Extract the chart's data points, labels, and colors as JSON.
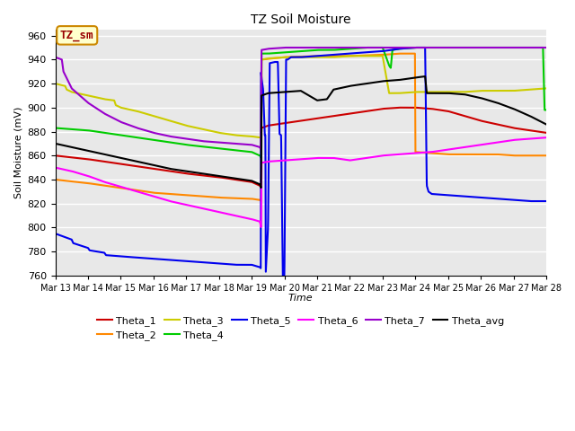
{
  "title": "TZ Soil Moisture",
  "ylabel": "Soil Moisture (mV)",
  "xlabel": "Time",
  "ylim": [
    760,
    965
  ],
  "yticks": [
    760,
    780,
    800,
    820,
    840,
    860,
    880,
    900,
    920,
    940,
    960
  ],
  "date_labels": [
    "Mar 13",
    "Mar 14",
    "Mar 15",
    "Mar 16",
    "Mar 17",
    "Mar 18",
    "Mar 19",
    "Mar 20",
    "Mar 21",
    "Mar 22",
    "Mar 23",
    "Mar 24",
    "Mar 25",
    "Mar 26",
    "Mar 27",
    "Mar 28"
  ],
  "colors": {
    "Theta_1": "#cc0000",
    "Theta_2": "#ff8800",
    "Theta_3": "#cccc00",
    "Theta_4": "#00cc00",
    "Theta_5": "#0000ee",
    "Theta_6": "#ff00ff",
    "Theta_7": "#9900cc",
    "Theta_avg": "#000000"
  },
  "background_color": "#e8e8e8",
  "grid_color": "#ffffff",
  "annotation_box": {
    "text": "TZ_sm",
    "color": "#990000",
    "bg": "#ffffcc"
  },
  "linewidth": 1.5
}
